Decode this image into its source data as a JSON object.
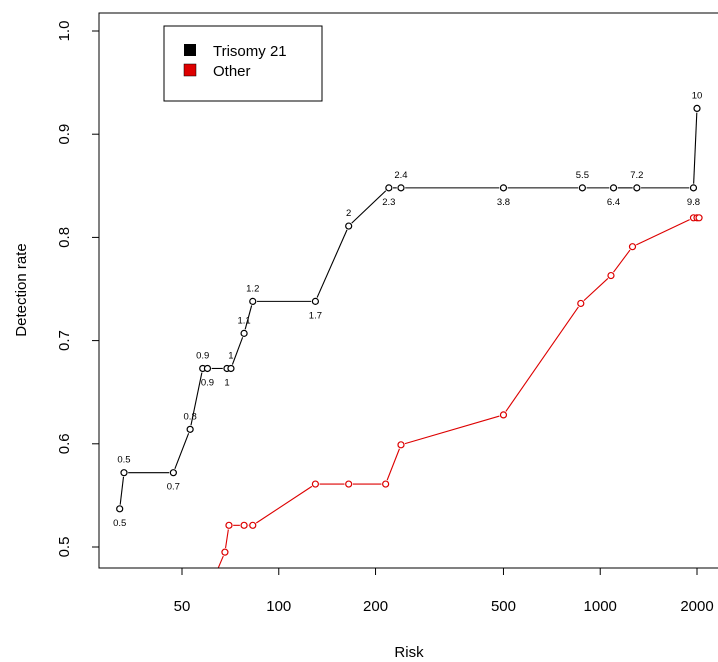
{
  "chart_data": {
    "type": "line",
    "title": "",
    "xlabel": "Risk",
    "ylabel": "Detection rate",
    "x_scale": "log",
    "xlim": [
      28,
      2050
    ],
    "ylim": [
      0.48,
      1.0
    ],
    "x_ticks": [
      50,
      100,
      200,
      500,
      1000,
      2000
    ],
    "x_tick_labels": [
      "50",
      "100",
      "200",
      "500",
      "1000",
      "2000"
    ],
    "y_ticks": [
      0.5,
      0.6,
      0.7,
      0.8,
      0.9,
      1.0
    ],
    "y_tick_labels": [
      "0.5",
      "0.6",
      "0.7",
      "0.8",
      "0.9",
      "1.0"
    ],
    "legend": {
      "position": "top-left",
      "entries": [
        {
          "label": "Trisomy 21",
          "color": "#000000"
        },
        {
          "label": "Other",
          "color": "#dd0000"
        }
      ]
    },
    "series": [
      {
        "name": "Trisomy 21",
        "color": "#000000",
        "x": [
          32,
          33,
          47,
          53,
          58,
          60,
          69,
          71,
          78,
          83,
          130,
          165,
          220,
          240,
          500,
          880,
          1100,
          1300,
          1950,
          2000
        ],
        "y": [
          0.537,
          0.572,
          0.572,
          0.614,
          0.673,
          0.673,
          0.673,
          0.673,
          0.707,
          0.738,
          0.738,
          0.811,
          0.848,
          0.848,
          0.848,
          0.848,
          0.848,
          0.848,
          0.848,
          0.925
        ],
        "labels": [
          "0.5",
          "0.5",
          "0.7",
          "0.8",
          "0.9",
          "0.9",
          "1",
          "1",
          "1.1",
          "1.2",
          "1.7",
          "2",
          "2.3",
          "2.4",
          "3.8",
          "5.5",
          "6.4",
          "7.2",
          "9.8",
          "10"
        ],
        "label_pos": [
          "below",
          "above",
          "below",
          "above",
          "above",
          "below",
          "below",
          "above",
          "above",
          "above",
          "below",
          "above",
          "below",
          "above",
          "below",
          "above",
          "below",
          "above",
          "below",
          "above"
        ]
      },
      {
        "name": "Other",
        "color": "#dd0000",
        "x": [
          60,
          68,
          70,
          78,
          83,
          130,
          165,
          215,
          240,
          500,
          870,
          1080,
          1260,
          1950,
          2000,
          2030
        ],
        "y": [
          0.455,
          0.495,
          0.521,
          0.521,
          0.521,
          0.561,
          0.561,
          0.561,
          0.599,
          0.628,
          0.736,
          0.763,
          0.791,
          0.819,
          0.819,
          0.819
        ]
      }
    ]
  }
}
